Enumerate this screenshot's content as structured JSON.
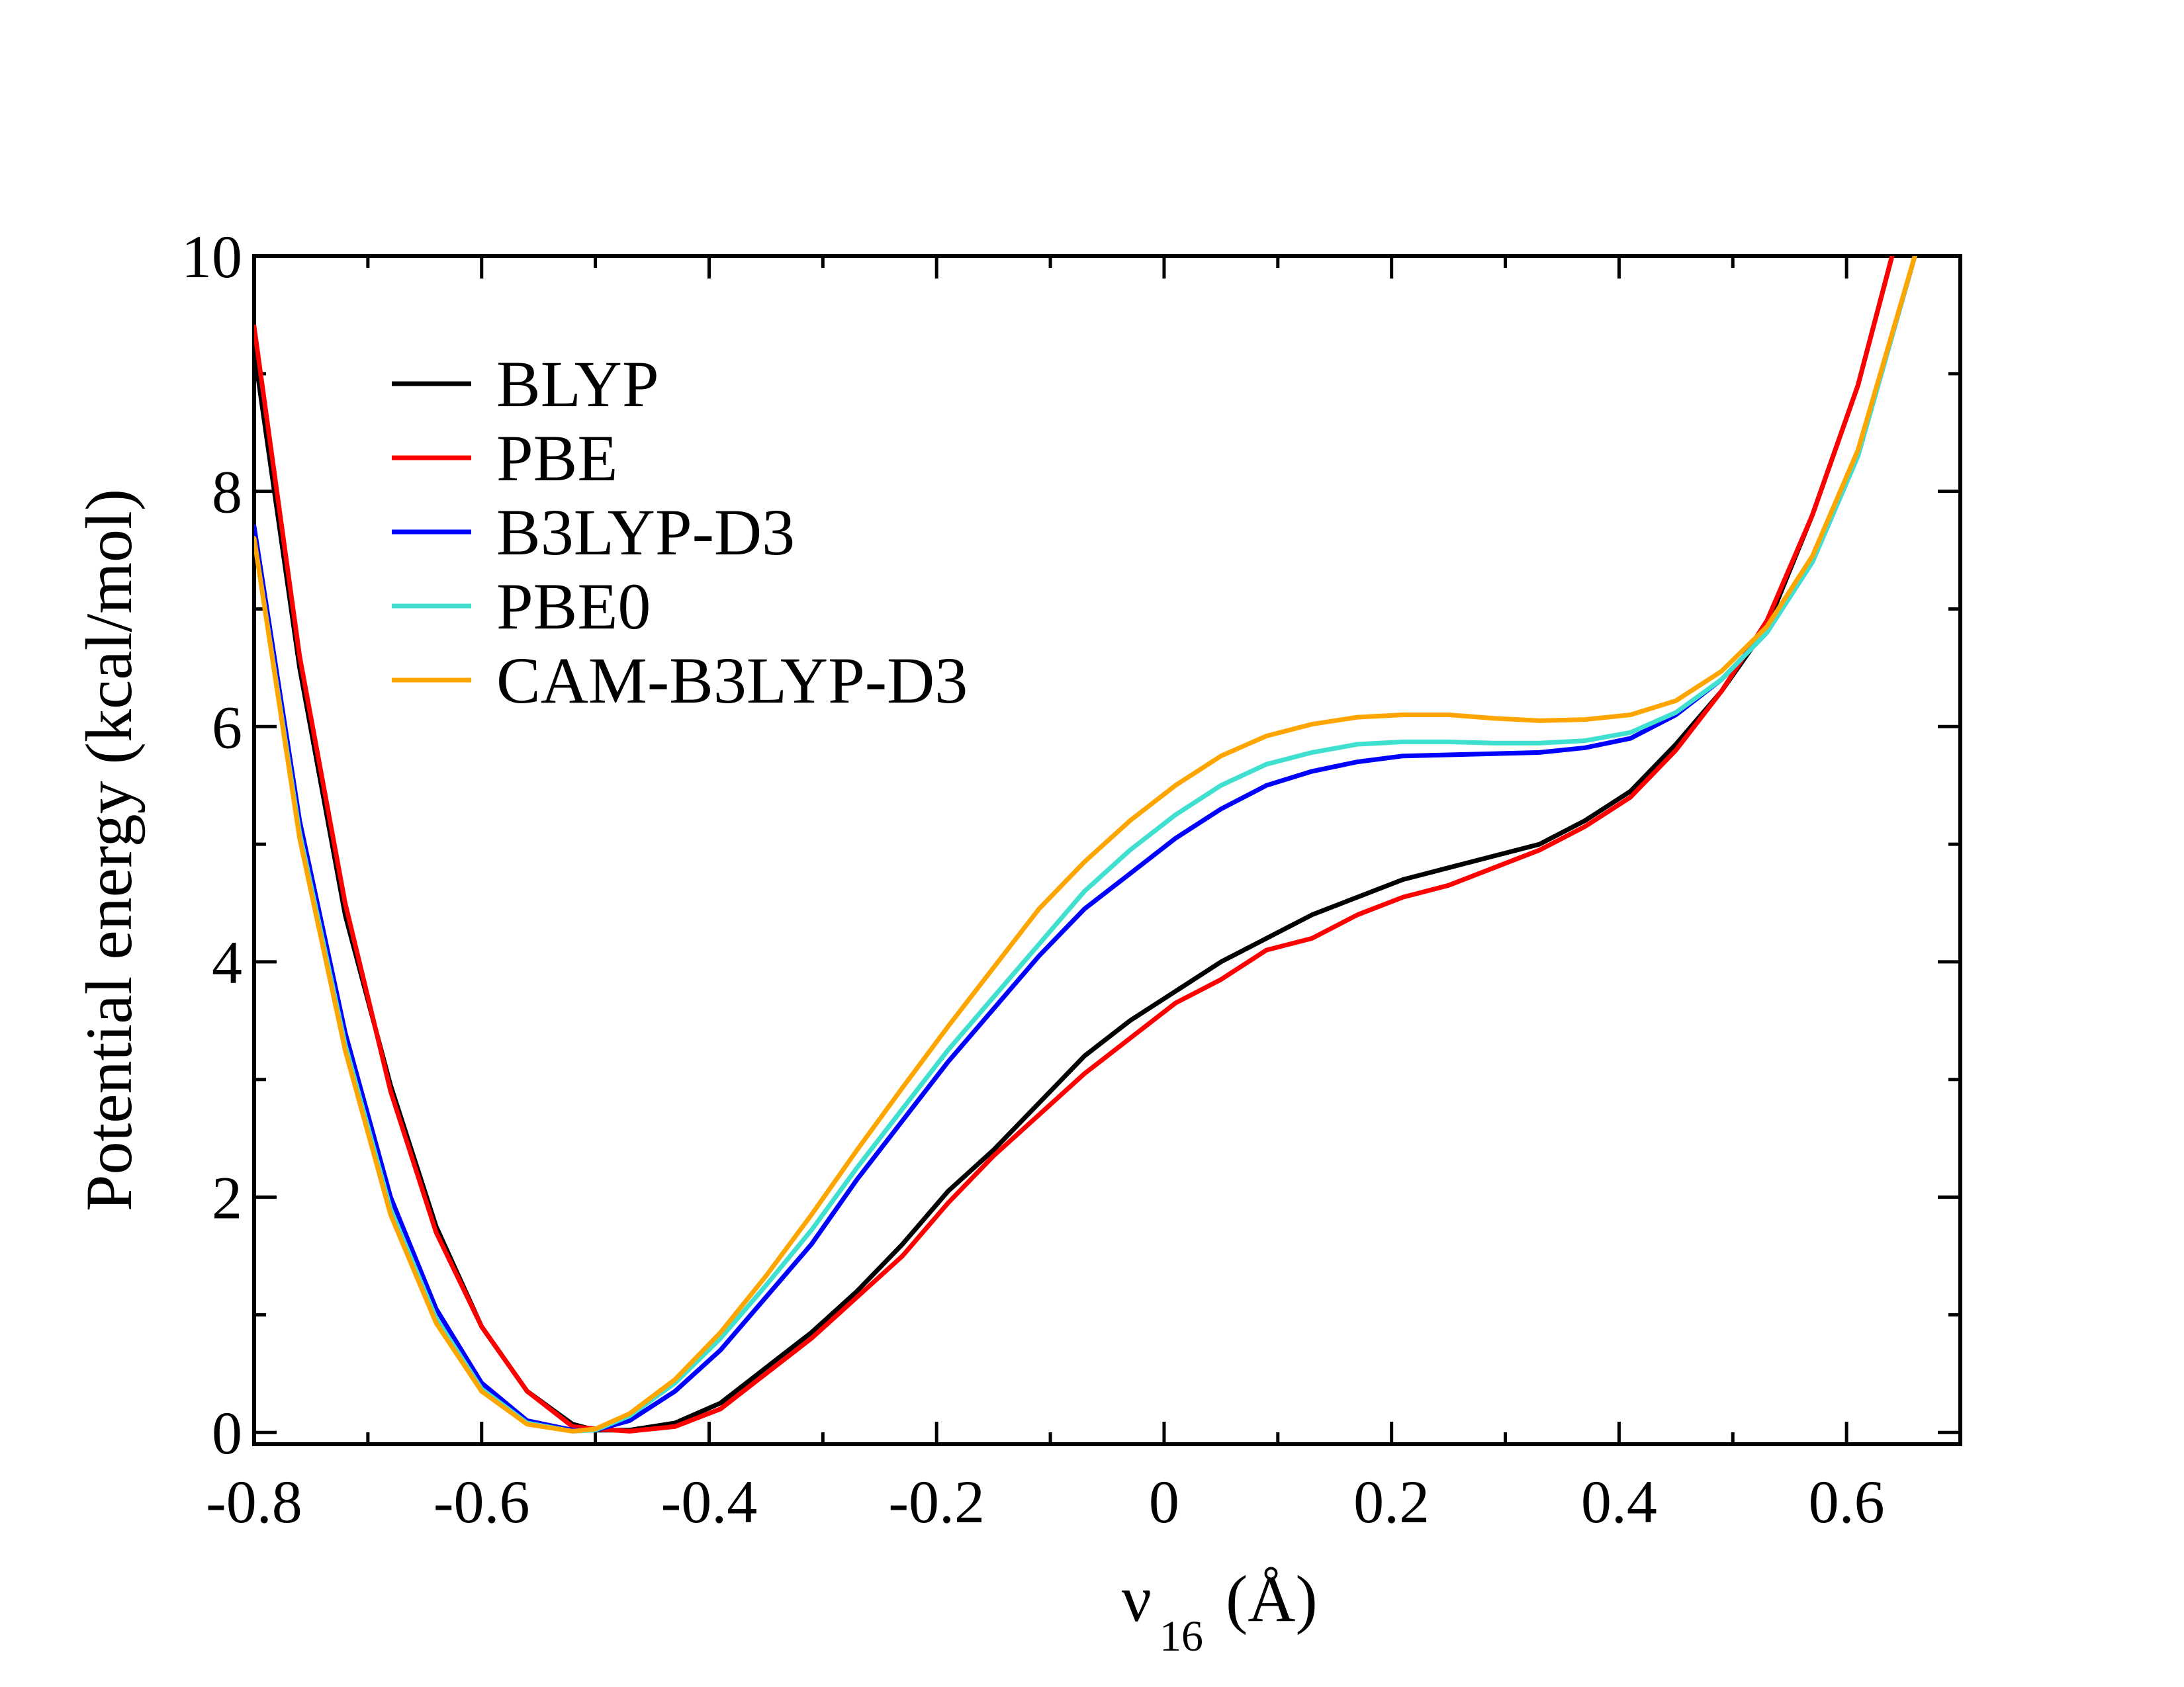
{
  "chart_data": {
    "type": "line",
    "title": "",
    "xlabel": "ν",
    "xlabel_sub": "16",
    "xlabel_unit": "(Å)",
    "ylabel": "Potential energy (kcal/mol)",
    "xlim": [
      -0.8,
      0.7
    ],
    "ylim": [
      -0.1,
      10
    ],
    "xticks": [
      -0.8,
      -0.6,
      -0.4,
      -0.2,
      0,
      0.2,
      0.4,
      0.6
    ],
    "xtick_labels": [
      "-0.8",
      "-0.6",
      "-0.4",
      "-0.2",
      "0",
      "0.2",
      "0.4",
      "0.6"
    ],
    "yticks": [
      0,
      2,
      4,
      6,
      8,
      10
    ],
    "ytick_labels": [
      "0",
      "2",
      "4",
      "6",
      "8",
      "10"
    ],
    "legend_position": "top-left",
    "series": [
      {
        "name": "BLYP",
        "color": "#000000",
        "x": [
          -0.8,
          -0.76,
          -0.72,
          -0.68,
          -0.64,
          -0.6,
          -0.56,
          -0.52,
          -0.5,
          -0.47,
          -0.43,
          -0.39,
          -0.35,
          -0.31,
          -0.27,
          -0.23,
          -0.19,
          -0.15,
          -0.11,
          -0.07,
          -0.03,
          0.01,
          0.05,
          0.09,
          0.13,
          0.17,
          0.21,
          0.25,
          0.29,
          0.33,
          0.37,
          0.41,
          0.45,
          0.49,
          0.53,
          0.57,
          0.61,
          0.64
        ],
        "values": [
          9.2,
          6.5,
          4.4,
          2.95,
          1.75,
          0.9,
          0.35,
          0.07,
          0.02,
          0.02,
          0.08,
          0.25,
          0.55,
          0.85,
          1.2,
          1.6,
          2.05,
          2.4,
          2.8,
          3.2,
          3.5,
          3.75,
          4.0,
          4.2,
          4.4,
          4.55,
          4.7,
          4.8,
          4.9,
          5.0,
          5.2,
          5.45,
          5.85,
          6.3,
          6.85,
          7.8,
          8.9,
          10.0
        ]
      },
      {
        "name": "PBE",
        "color": "#ff0000",
        "x": [
          -0.8,
          -0.76,
          -0.72,
          -0.68,
          -0.64,
          -0.6,
          -0.56,
          -0.52,
          -0.5,
          -0.47,
          -0.43,
          -0.39,
          -0.35,
          -0.31,
          -0.27,
          -0.23,
          -0.19,
          -0.15,
          -0.11,
          -0.07,
          -0.03,
          0.01,
          0.05,
          0.09,
          0.13,
          0.17,
          0.21,
          0.25,
          0.29,
          0.33,
          0.37,
          0.41,
          0.45,
          0.49,
          0.53,
          0.57,
          0.61,
          0.64
        ],
        "values": [
          9.4,
          6.6,
          4.5,
          2.9,
          1.7,
          0.9,
          0.35,
          0.05,
          0.03,
          0.01,
          0.05,
          0.2,
          0.5,
          0.8,
          1.15,
          1.5,
          1.95,
          2.35,
          2.7,
          3.05,
          3.35,
          3.65,
          3.85,
          4.1,
          4.2,
          4.4,
          4.55,
          4.65,
          4.8,
          4.95,
          5.15,
          5.4,
          5.8,
          6.3,
          6.9,
          7.8,
          8.9,
          10.0
        ]
      },
      {
        "name": "B3LYP-D3",
        "color": "#0000ff",
        "x": [
          -0.8,
          -0.76,
          -0.72,
          -0.68,
          -0.64,
          -0.6,
          -0.56,
          -0.52,
          -0.5,
          -0.47,
          -0.43,
          -0.39,
          -0.35,
          -0.31,
          -0.27,
          -0.23,
          -0.19,
          -0.15,
          -0.11,
          -0.07,
          -0.03,
          0.01,
          0.05,
          0.09,
          0.13,
          0.17,
          0.21,
          0.25,
          0.29,
          0.33,
          0.37,
          0.41,
          0.45,
          0.49,
          0.53,
          0.57,
          0.61,
          0.66
        ],
        "values": [
          7.7,
          5.2,
          3.4,
          2.0,
          1.05,
          0.42,
          0.1,
          0.02,
          0.02,
          0.1,
          0.35,
          0.7,
          1.15,
          1.6,
          2.15,
          2.65,
          3.15,
          3.6,
          4.05,
          4.45,
          4.75,
          5.05,
          5.3,
          5.5,
          5.62,
          5.7,
          5.75,
          5.76,
          5.77,
          5.78,
          5.82,
          5.9,
          6.1,
          6.4,
          6.8,
          7.4,
          8.3,
          10.0
        ]
      },
      {
        "name": "PBE0",
        "color": "#40e0d0",
        "x": [
          -0.8,
          -0.76,
          -0.72,
          -0.68,
          -0.64,
          -0.6,
          -0.56,
          -0.52,
          -0.5,
          -0.47,
          -0.43,
          -0.39,
          -0.35,
          -0.31,
          -0.27,
          -0.23,
          -0.19,
          -0.15,
          -0.11,
          -0.07,
          -0.03,
          0.01,
          0.05,
          0.09,
          0.13,
          0.17,
          0.21,
          0.25,
          0.29,
          0.33,
          0.37,
          0.41,
          0.45,
          0.49,
          0.53,
          0.57,
          0.61,
          0.66
        ],
        "values": [
          7.6,
          5.1,
          3.3,
          1.9,
          0.97,
          0.37,
          0.08,
          0.01,
          0.02,
          0.14,
          0.42,
          0.8,
          1.25,
          1.72,
          2.25,
          2.75,
          3.25,
          3.7,
          4.15,
          4.6,
          4.95,
          5.25,
          5.5,
          5.68,
          5.78,
          5.85,
          5.87,
          5.87,
          5.86,
          5.86,
          5.88,
          5.95,
          6.12,
          6.4,
          6.8,
          7.4,
          8.3,
          10.0
        ]
      },
      {
        "name": "CAM-B3LYP-D3",
        "color": "#ffa500",
        "x": [
          -0.8,
          -0.76,
          -0.72,
          -0.68,
          -0.64,
          -0.6,
          -0.56,
          -0.52,
          -0.5,
          -0.47,
          -0.43,
          -0.39,
          -0.35,
          -0.31,
          -0.27,
          -0.23,
          -0.19,
          -0.15,
          -0.11,
          -0.07,
          -0.03,
          0.01,
          0.05,
          0.09,
          0.13,
          0.17,
          0.21,
          0.25,
          0.29,
          0.33,
          0.37,
          0.41,
          0.45,
          0.49,
          0.53,
          0.57,
          0.61,
          0.66
        ],
        "values": [
          7.6,
          5.05,
          3.25,
          1.85,
          0.93,
          0.35,
          0.07,
          0.01,
          0.03,
          0.16,
          0.45,
          0.85,
          1.33,
          1.85,
          2.4,
          2.93,
          3.45,
          3.95,
          4.45,
          4.85,
          5.2,
          5.5,
          5.75,
          5.92,
          6.02,
          6.08,
          6.1,
          6.1,
          6.07,
          6.05,
          6.06,
          6.1,
          6.22,
          6.47,
          6.85,
          7.45,
          8.35,
          10.0
        ]
      }
    ]
  }
}
